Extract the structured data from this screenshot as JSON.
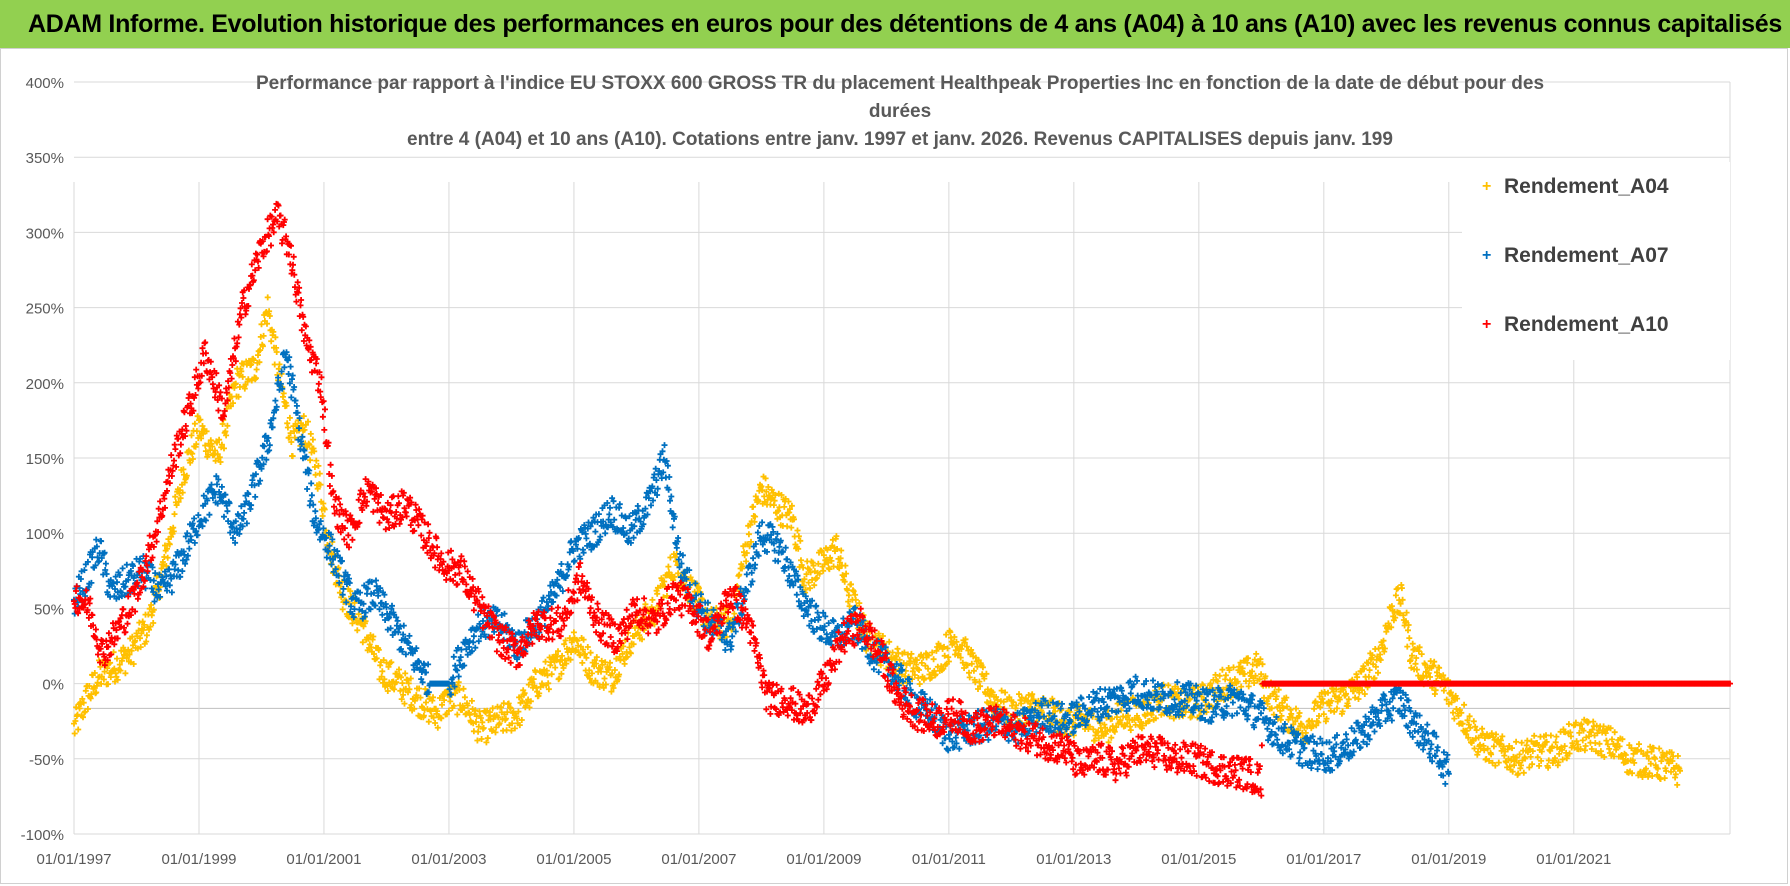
{
  "header": {
    "banner_text": "ADAM Informe. Evolution historique des performances en euros pour des détentions de 4 ans (A04) à 10 ans (A10) avec les revenus connus capitalisés"
  },
  "chart_data": {
    "type": "scatter",
    "title_lines": [
      "Performance par rapport à l'indice EU STOXX 600 GROSS TR  du placement Healthpeak Properties Inc en fonction de la date de début pour des",
      "durées",
      "entre 4 (A04) et 10 ans (A10).  Cotations entre janv. 1997 et janv. 2026. Revenus CAPITALISES depuis janv. 199"
    ],
    "xlabel": "",
    "ylabel": "",
    "ylim": [
      -100,
      400
    ],
    "y_ticks": [
      "400%",
      "350%",
      "300%",
      "250%",
      "200%",
      "150%",
      "100%",
      "50%",
      "0%",
      "-50%",
      "-100%"
    ],
    "x_ticks": [
      "01/01/1997",
      "01/01/1999",
      "01/01/2001",
      "01/01/2003",
      "01/01/2005",
      "01/01/2007",
      "01/01/2009",
      "01/01/2011",
      "01/01/2013",
      "01/01/2015",
      "01/01/2017",
      "01/01/2019",
      "01/01/2021"
    ],
    "xlim": [
      1997.0,
      2023.5
    ],
    "grid": true,
    "legend_position": "top-right",
    "series": [
      {
        "name": "Rendement_A04",
        "color": "#ffc000",
        "points": [
          [
            1997.0,
            -30
          ],
          [
            1997.2,
            -10
          ],
          [
            1997.4,
            5
          ],
          [
            1997.6,
            10
          ],
          [
            1997.9,
            20
          ],
          [
            1998.2,
            40
          ],
          [
            1998.5,
            90
          ],
          [
            1998.75,
            140
          ],
          [
            1999.0,
            170
          ],
          [
            1999.3,
            150
          ],
          [
            1999.6,
            200
          ],
          [
            1999.9,
            210
          ],
          [
            2000.1,
            250
          ],
          [
            2000.3,
            200
          ],
          [
            2000.5,
            160
          ],
          [
            2000.7,
            170
          ],
          [
            2000.9,
            140
          ],
          [
            2001.1,
            90
          ],
          [
            2001.3,
            60
          ],
          [
            2001.6,
            40
          ],
          [
            2001.9,
            10
          ],
          [
            2002.2,
            0
          ],
          [
            2002.5,
            -10
          ],
          [
            2002.8,
            -20
          ],
          [
            2003.0,
            -10
          ],
          [
            2003.2,
            -10
          ],
          [
            2003.5,
            -30
          ],
          [
            2003.8,
            -25
          ],
          [
            2004.1,
            -20
          ],
          [
            2004.4,
            0
          ],
          [
            2004.7,
            10
          ],
          [
            2005.0,
            30
          ],
          [
            2005.3,
            10
          ],
          [
            2005.6,
            5
          ],
          [
            2005.9,
            30
          ],
          [
            2006.3,
            50
          ],
          [
            2006.6,
            80
          ],
          [
            2006.9,
            60
          ],
          [
            2007.2,
            40
          ],
          [
            2007.5,
            40
          ],
          [
            2007.8,
            100
          ],
          [
            2008.0,
            130
          ],
          [
            2008.2,
            120
          ],
          [
            2008.5,
            110
          ],
          [
            2008.7,
            70
          ],
          [
            2009.0,
            80
          ],
          [
            2009.2,
            90
          ],
          [
            2009.4,
            60
          ],
          [
            2009.7,
            30
          ],
          [
            2010.0,
            20
          ],
          [
            2010.3,
            10
          ],
          [
            2010.6,
            10
          ],
          [
            2010.9,
            20
          ],
          [
            2011.1,
            30
          ],
          [
            2011.4,
            10
          ],
          [
            2011.7,
            -10
          ],
          [
            2012.0,
            -20
          ],
          [
            2012.3,
            -15
          ],
          [
            2012.6,
            -20
          ],
          [
            2012.9,
            -25
          ],
          [
            2013.2,
            -25
          ],
          [
            2013.5,
            -30
          ],
          [
            2013.8,
            -20
          ],
          [
            2014.1,
            -20
          ],
          [
            2014.4,
            -10
          ],
          [
            2014.8,
            -15
          ],
          [
            2015.1,
            -10
          ],
          [
            2015.4,
            0
          ],
          [
            2015.7,
            5
          ],
          [
            2015.95,
            10
          ],
          [
            2016.1,
            -5
          ],
          [
            2016.4,
            -20
          ],
          [
            2016.7,
            -30
          ],
          [
            2017.0,
            -15
          ],
          [
            2017.3,
            -10
          ],
          [
            2017.6,
            0
          ],
          [
            2017.9,
            20
          ],
          [
            2018.1,
            50
          ],
          [
            2018.25,
            55
          ],
          [
            2018.4,
            20
          ],
          [
            2018.6,
            10
          ],
          [
            2018.9,
            0
          ],
          [
            2019.2,
            -20
          ],
          [
            2019.5,
            -40
          ],
          [
            2019.8,
            -45
          ],
          [
            2020.1,
            -50
          ],
          [
            2020.4,
            -45
          ],
          [
            2020.7,
            -45
          ],
          [
            2021.0,
            -35
          ],
          [
            2021.3,
            -35
          ],
          [
            2021.6,
            -40
          ],
          [
            2021.9,
            -50
          ],
          [
            2022.2,
            -52
          ],
          [
            2022.5,
            -55
          ],
          [
            2022.7,
            -58
          ]
        ]
      },
      {
        "name": "Rendement_A07",
        "color": "#0070c0",
        "points": [
          [
            1997.0,
            55
          ],
          [
            1997.2,
            70
          ],
          [
            1997.4,
            90
          ],
          [
            1997.6,
            60
          ],
          [
            1997.9,
            70
          ],
          [
            1998.1,
            75
          ],
          [
            1998.4,
            60
          ],
          [
            1998.7,
            80
          ],
          [
            1999.0,
            110
          ],
          [
            1999.3,
            130
          ],
          [
            1999.6,
            100
          ],
          [
            1999.8,
            120
          ],
          [
            2000.1,
            160
          ],
          [
            2000.4,
            220
          ],
          [
            2000.6,
            170
          ],
          [
            2000.85,
            110
          ],
          [
            2001.1,
            90
          ],
          [
            2001.3,
            70
          ],
          [
            2001.5,
            50
          ],
          [
            2001.8,
            60
          ],
          [
            2002.1,
            40
          ],
          [
            2002.4,
            20
          ],
          [
            2002.7,
            0
          ],
          [
            2003.0,
            0
          ],
          [
            2003.2,
            20
          ],
          [
            2003.5,
            40
          ],
          [
            2003.8,
            40
          ],
          [
            2004.1,
            25
          ],
          [
            2004.4,
            40
          ],
          [
            2004.7,
            60
          ],
          [
            2005.0,
            90
          ],
          [
            2005.3,
            100
          ],
          [
            2005.6,
            115
          ],
          [
            2005.9,
            100
          ],
          [
            2006.2,
            120
          ],
          [
            2006.45,
            150
          ],
          [
            2006.7,
            80
          ],
          [
            2006.9,
            60
          ],
          [
            2007.2,
            40
          ],
          [
            2007.5,
            30
          ],
          [
            2007.8,
            70
          ],
          [
            2008.0,
            100
          ],
          [
            2008.3,
            90
          ],
          [
            2008.6,
            60
          ],
          [
            2008.9,
            40
          ],
          [
            2009.2,
            30
          ],
          [
            2009.5,
            40
          ],
          [
            2009.8,
            20
          ],
          [
            2010.1,
            10
          ],
          [
            2010.4,
            -10
          ],
          [
            2010.7,
            -20
          ],
          [
            2011.0,
            -35
          ],
          [
            2011.4,
            -30
          ],
          [
            2011.8,
            -25
          ],
          [
            2012.1,
            -30
          ],
          [
            2012.5,
            -20
          ],
          [
            2012.9,
            -25
          ],
          [
            2013.3,
            -15
          ],
          [
            2013.7,
            -10
          ],
          [
            2014.0,
            -5
          ],
          [
            2014.4,
            -10
          ],
          [
            2014.8,
            -10
          ],
          [
            2015.2,
            -15
          ],
          [
            2015.6,
            -10
          ],
          [
            2015.95,
            -20
          ],
          [
            2016.3,
            -35
          ],
          [
            2016.7,
            -45
          ],
          [
            2017.1,
            -48
          ],
          [
            2017.5,
            -38
          ],
          [
            2017.9,
            -20
          ],
          [
            2018.2,
            -10
          ],
          [
            2018.5,
            -30
          ],
          [
            2018.8,
            -45
          ],
          [
            2019.0,
            -60
          ]
        ]
      },
      {
        "name": "Rendement_A10",
        "color": "#ff0000",
        "points": [
          [
            1997.0,
            60
          ],
          [
            1997.25,
            50
          ],
          [
            1997.45,
            20
          ],
          [
            1997.7,
            35
          ],
          [
            1998.0,
            60
          ],
          [
            1998.3,
            100
          ],
          [
            1998.6,
            150
          ],
          [
            1998.9,
            190
          ],
          [
            1999.1,
            220
          ],
          [
            1999.4,
            180
          ],
          [
            1999.7,
            250
          ],
          [
            2000.0,
            290
          ],
          [
            2000.25,
            310
          ],
          [
            2000.45,
            290
          ],
          [
            2000.7,
            230
          ],
          [
            2000.95,
            200
          ],
          [
            2001.15,
            120
          ],
          [
            2001.4,
            100
          ],
          [
            2001.7,
            130
          ],
          [
            2002.0,
            110
          ],
          [
            2002.3,
            120
          ],
          [
            2002.6,
            100
          ],
          [
            2002.9,
            80
          ],
          [
            2003.2,
            75
          ],
          [
            2003.5,
            50
          ],
          [
            2003.8,
            30
          ],
          [
            2004.1,
            20
          ],
          [
            2004.4,
            40
          ],
          [
            2004.8,
            40
          ],
          [
            2005.1,
            70
          ],
          [
            2005.4,
            40
          ],
          [
            2005.7,
            30
          ],
          [
            2006.0,
            50
          ],
          [
            2006.3,
            40
          ],
          [
            2006.6,
            60
          ],
          [
            2006.9,
            50
          ],
          [
            2007.2,
            30
          ],
          [
            2007.5,
            60
          ],
          [
            2007.8,
            40
          ],
          [
            2008.1,
            -10
          ],
          [
            2008.4,
            -10
          ],
          [
            2008.7,
            -20
          ],
          [
            2009.0,
            0
          ],
          [
            2009.3,
            30
          ],
          [
            2009.6,
            40
          ],
          [
            2009.9,
            20
          ],
          [
            2010.2,
            -10
          ],
          [
            2010.5,
            -20
          ],
          [
            2010.8,
            -25
          ],
          [
            2011.1,
            -20
          ],
          [
            2011.4,
            -30
          ],
          [
            2011.7,
            -25
          ],
          [
            2012.0,
            -30
          ],
          [
            2012.3,
            -35
          ],
          [
            2012.6,
            -40
          ],
          [
            2012.9,
            -45
          ],
          [
            2013.1,
            -55
          ],
          [
            2013.4,
            -50
          ],
          [
            2013.7,
            -55
          ],
          [
            2014.0,
            -45
          ],
          [
            2014.3,
            -45
          ],
          [
            2014.6,
            -50
          ],
          [
            2014.9,
            -50
          ],
          [
            2015.2,
            -55
          ],
          [
            2015.5,
            -58
          ],
          [
            2015.8,
            -60
          ],
          [
            2016.0,
            -65
          ],
          [
            2016.02,
            0
          ],
          [
            2023.5,
            0
          ]
        ]
      }
    ]
  }
}
